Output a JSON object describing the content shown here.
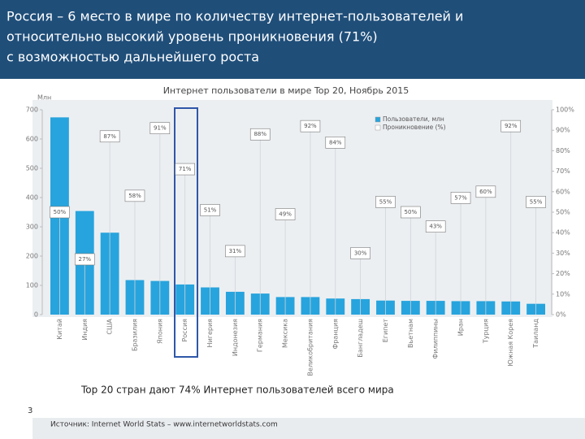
{
  "header": {
    "title_lines": [
      "Россия – 6 место в мире по количеству интернет-пользователей и",
      "относительно высокий уровень проникновения (71%)",
      "с возможностью дальнейшего роста"
    ]
  },
  "chart_data": {
    "type": "bar",
    "title": "Интернет пользователи в мире Top 20, Ноябрь 2015",
    "y_axis_label": "Млн",
    "categories": [
      "Китай",
      "Индия",
      "США",
      "Бразилия",
      "Япония",
      "Россия",
      "Нигерия",
      "Индонезия",
      "Германия",
      "Мексика",
      "Великобритания",
      "Франция",
      "Бангладеш",
      "Египет",
      "Вьетнам",
      "Филиппины",
      "Иран",
      "Турция",
      "Южная Корея",
      "Таиланд"
    ],
    "series": [
      {
        "name": "Пользователи, млн",
        "color": "#27a4dd",
        "values": [
          674,
          354,
          280,
          118,
          115,
          103,
          93,
          78,
          72,
          60,
          60,
          55,
          53,
          48,
          47,
          47,
          46,
          46,
          45,
          37
        ]
      },
      {
        "name": "Проникновение (%)",
        "color": "#ffffff",
        "axis": "y2",
        "values": [
          50,
          27,
          87,
          58,
          91,
          71,
          51,
          31,
          88,
          49,
          92,
          84,
          30,
          55,
          50,
          43,
          57,
          60,
          92,
          55
        ],
        "value_labels": [
          "50%",
          "27%",
          "87%",
          "58%",
          "91%",
          "71%",
          "51%",
          "31%",
          "88%",
          "49%",
          "92%",
          "84%",
          "30%",
          "55%",
          "50%",
          "43%",
          "57%",
          "60%",
          "92%",
          "55%"
        ]
      }
    ],
    "ylim": [
      0,
      700
    ],
    "yticks": [
      0,
      100,
      200,
      300,
      400,
      500,
      600,
      700
    ],
    "y2lim": [
      0,
      100
    ],
    "y2ticks": [
      {
        "value": 0,
        "label": "0%"
      },
      {
        "value": 10,
        "label": "10%"
      },
      {
        "value": 20,
        "label": "20%"
      },
      {
        "value": 30,
        "label": "30%"
      },
      {
        "value": 40,
        "label": "40%"
      },
      {
        "value": 50,
        "label": "50%"
      },
      {
        "value": 60,
        "label": "60%"
      },
      {
        "value": 70,
        "label": "70%"
      },
      {
        "value": 80,
        "label": "80%"
      },
      {
        "value": 90,
        "label": "90%"
      },
      {
        "value": 100,
        "label": "100%"
      }
    ],
    "legend": "upper right"
  },
  "footer": {
    "note": "Top 20 стран дают 74% Интернет пользователей всего мира",
    "page_number": "3",
    "source": "Источник: Internet World Stats – www.internetworldstats.com"
  }
}
